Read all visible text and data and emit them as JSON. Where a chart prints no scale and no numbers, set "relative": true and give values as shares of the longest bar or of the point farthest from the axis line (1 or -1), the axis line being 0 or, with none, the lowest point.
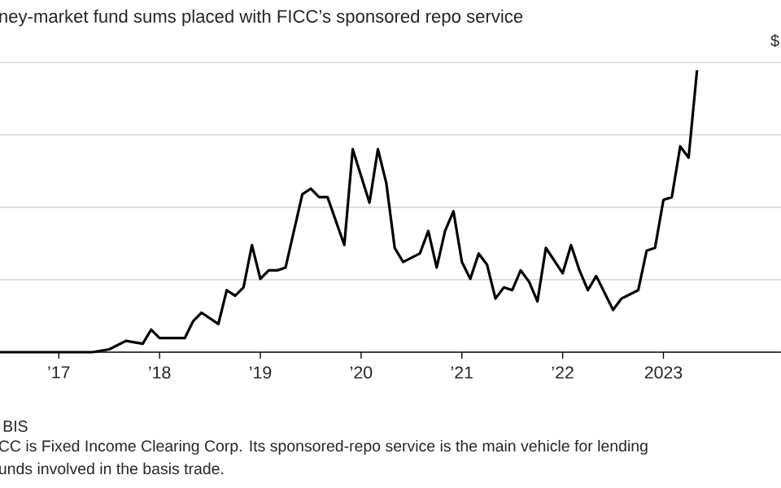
{
  "chart_data": {
    "type": "line",
    "title": "ney-market fund sums placed with FICC’s sponsored repo service",
    "ylabel": "$",
    "relative": true,
    "grid": "y",
    "color": "#000000",
    "line_style": "solid",
    "marker": "none",
    "xlim": [
      "2016-06",
      "2024-03"
    ],
    "xticks": [
      {
        "value": "2017-01",
        "label": "’17"
      },
      {
        "value": "2018-01",
        "label": "’18"
      },
      {
        "value": "2019-01",
        "label": "’19"
      },
      {
        "value": "2020-01",
        "label": "’20"
      },
      {
        "value": "2021-01",
        "label": "’21"
      },
      {
        "value": "2022-01",
        "label": "’22"
      },
      {
        "value": "2023-01",
        "label": "2023"
      }
    ],
    "x": [
      "2016-06",
      "2017-05",
      "2017-07",
      "2017-09",
      "2017-11",
      "2017-12",
      "2018-01",
      "2018-03",
      "2018-04",
      "2018-05",
      "2018-06",
      "2018-08",
      "2018-09",
      "2018-10",
      "2018-11",
      "2018-12",
      "2019-01",
      "2019-02",
      "2019-03",
      "2019-04",
      "2019-06",
      "2019-07",
      "2019-08",
      "2019-09",
      "2019-11",
      "2019-12",
      "2020-02",
      "2020-03",
      "2020-04",
      "2020-05",
      "2020-06",
      "2020-08",
      "2020-09",
      "2020-10",
      "2020-11",
      "2020-12",
      "2021-01",
      "2021-02",
      "2021-03",
      "2021-04",
      "2021-05",
      "2021-06",
      "2021-07",
      "2021-08",
      "2021-09",
      "2021-10",
      "2021-11",
      "2022-01",
      "2022-02",
      "2022-03",
      "2022-04",
      "2022-05",
      "2022-07",
      "2022-08",
      "2022-10",
      "2022-11",
      "2022-12",
      "2023-01",
      "2023-02",
      "2023-03",
      "2023-04",
      "2023-05"
    ],
    "values": [
      0,
      0,
      0.01,
      0.04,
      0.03,
      0.08,
      0.05,
      0.05,
      0.05,
      0.11,
      0.14,
      0.1,
      0.22,
      0.2,
      0.23,
      0.38,
      0.26,
      0.29,
      0.29,
      0.3,
      0.56,
      0.58,
      0.55,
      0.55,
      0.38,
      0.72,
      0.53,
      0.72,
      0.6,
      0.37,
      0.32,
      0.35,
      0.43,
      0.3,
      0.43,
      0.5,
      0.32,
      0.26,
      0.35,
      0.31,
      0.19,
      0.23,
      0.22,
      0.29,
      0.25,
      0.18,
      0.37,
      0.28,
      0.38,
      0.29,
      0.22,
      0.27,
      0.15,
      0.19,
      0.22,
      0.36,
      0.37,
      0.54,
      0.55,
      0.73,
      0.69,
      1
    ],
    "annotations": [
      "BIS",
      "CC is Fixed Income Clearing Corp. Its sponsored-repo service is the main vehicle for lending",
      "unds involved in the basis trade."
    ]
  }
}
